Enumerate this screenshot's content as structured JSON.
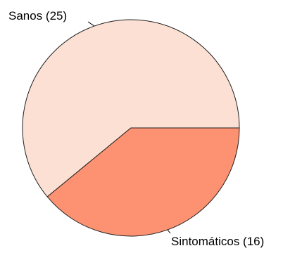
{
  "chart_data": {
    "type": "pie",
    "slices": [
      {
        "label": "Sanos (25)",
        "value": 25,
        "color": "#FDE0D4"
      },
      {
        "label": "Sintomáticos (16)",
        "value": 16,
        "color": "#FC9272"
      }
    ],
    "start_angle_deg": 0,
    "direction": "counterclockwise",
    "title": ""
  }
}
